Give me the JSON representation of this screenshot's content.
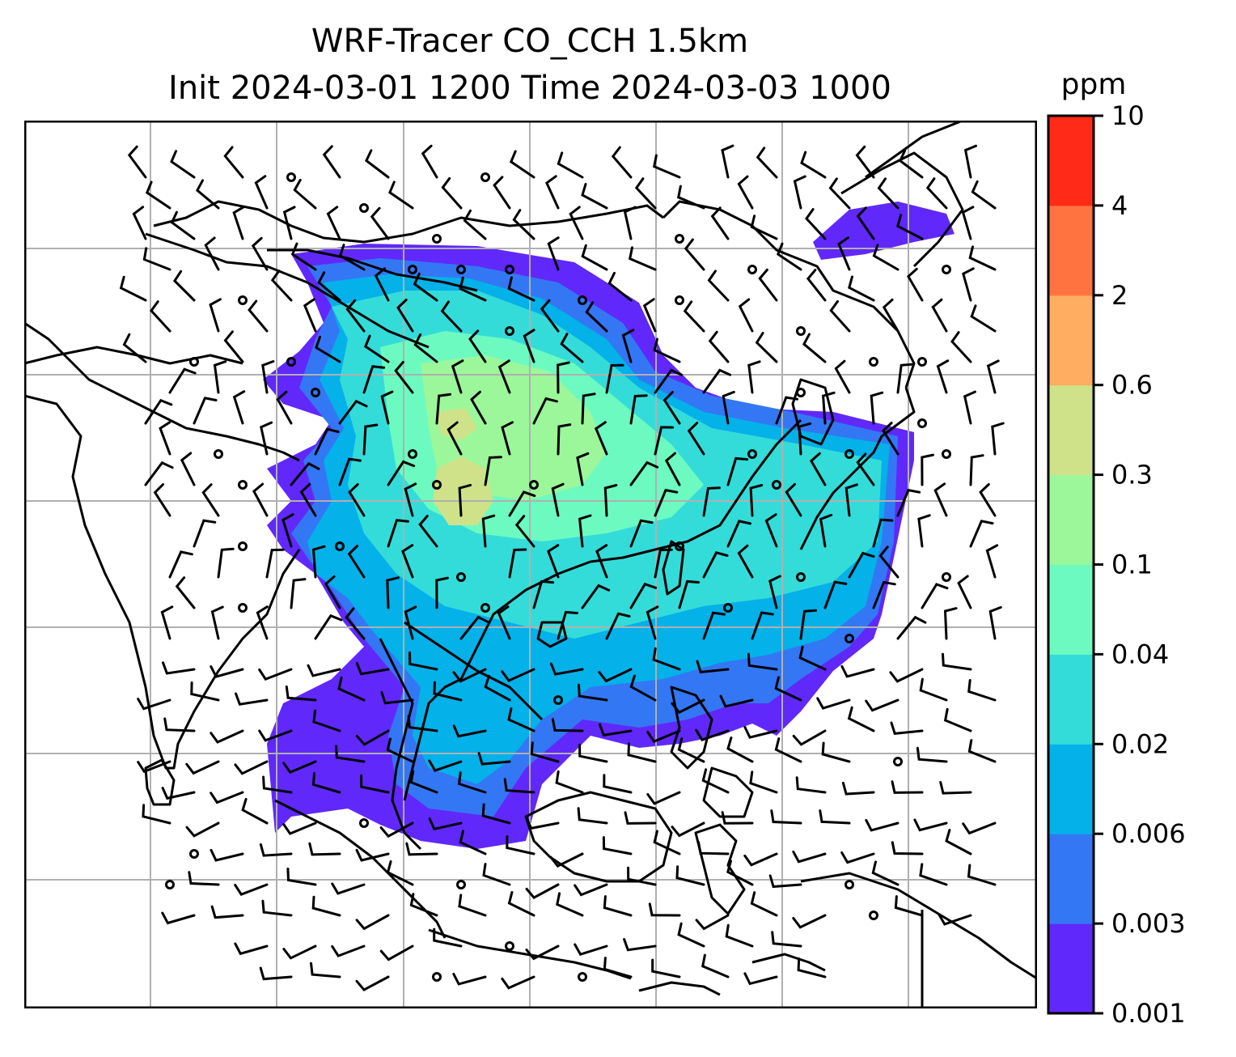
{
  "title": {
    "line1": "WRF-Tracer CO_CCH 1.5km",
    "line2": "Init 2024-03-01 1200 Time 2024-03-03 1000"
  },
  "colorbar": {
    "unit": "ppm",
    "levels": [
      "0.001",
      "0.003",
      "0.006",
      "0.02",
      "0.04",
      "0.1",
      "0.3",
      "0.6",
      "2",
      "4",
      "10"
    ],
    "colors": [
      "#6128fb",
      "#3377f4",
      "#04b1e9",
      "#34dcd9",
      "#6cfac1",
      "#9cf79a",
      "#cfe289",
      "#ffad60",
      "#ff7340",
      "#ff2a17"
    ]
  },
  "map": {
    "gridlines": true,
    "coastline_color": "#000000",
    "grid_color": "#b0b0b0"
  }
}
